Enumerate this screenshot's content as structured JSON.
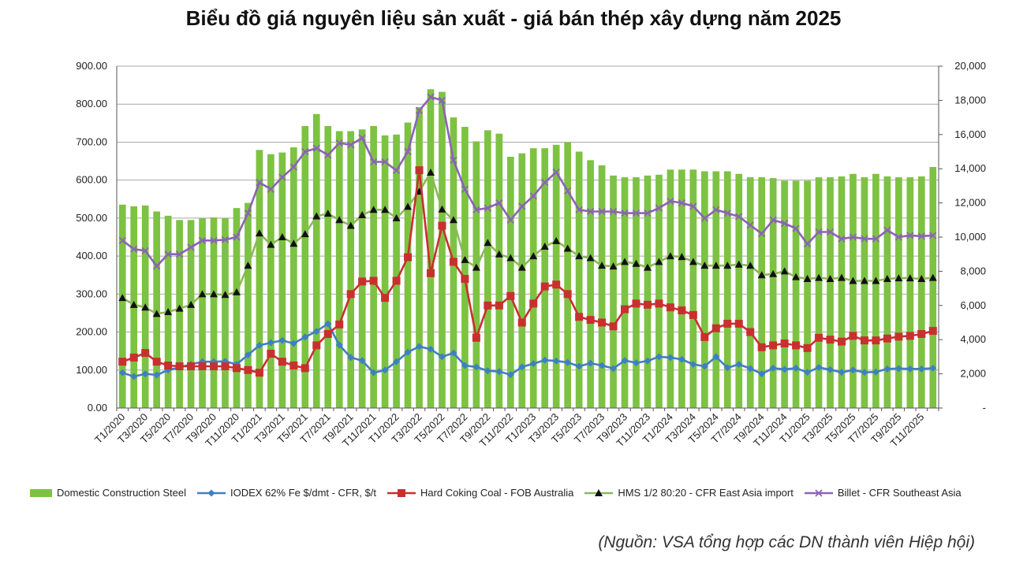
{
  "chart_data": {
    "type": "bar",
    "title": "Biểu đồ giá nguyên liệu sản xuất - giá bán thép xây dựng năm 2025",
    "source": "(Nguồn: VSA tổng hợp các DN thành viên Hiệp hội)",
    "x_tick_labels": [
      "T1/2020",
      "T3/2020",
      "T5/2020",
      "T7/2020",
      "T9/2020",
      "T11/2020",
      "T1/2021",
      "T3/2021",
      "T5/2021",
      "T7/2021",
      "T9/2021",
      "T11/2021",
      "T1/2022",
      "T3/2022",
      "T5/2022",
      "T7/2022",
      "T9/2022",
      "T11/2022",
      "T1/2023",
      "T3/2023",
      "T5/2023",
      "T7/2023",
      "T9/2023",
      "T11/2023",
      "T1/2024",
      "T3/2024",
      "T5/2024",
      "T7/2024",
      "T9/2024",
      "T11/2024",
      "T1/2025",
      "T3/2025",
      "T5/2025",
      "T7/2025",
      "T9/2025",
      "T11/2025"
    ],
    "y_left": {
      "range": [
        0,
        900
      ],
      "ticks": [
        "0.00",
        "100.00",
        "200.00",
        "300.00",
        "400.00",
        "500.00",
        "600.00",
        "700.00",
        "800.00",
        "900.00"
      ]
    },
    "y_right": {
      "range": [
        0,
        20000
      ],
      "ticks": [
        "-",
        "2,000",
        "4,000",
        "6,000",
        "8,000",
        "10,000",
        "12,000",
        "14,000",
        "16,000",
        "18,000",
        "20,000"
      ]
    },
    "grid": true,
    "legend_position": "bottom",
    "series": [
      {
        "name": "Domestic Construction Steel",
        "type": "bar",
        "axis": "right",
        "color": "#7dc242",
        "values": [
          11900,
          11800,
          11850,
          11500,
          11250,
          11000,
          11000,
          11100,
          11150,
          11100,
          11700,
          12000,
          15100,
          14850,
          14950,
          15250,
          16500,
          17200,
          16500,
          16200,
          16200,
          16300,
          16500,
          15950,
          16000,
          16700,
          17600,
          18650,
          18500,
          17000,
          16450,
          15600,
          16250,
          16050,
          14700,
          14900,
          15200,
          15200,
          15400,
          15550,
          15000,
          14500,
          14200,
          13600,
          13500,
          13500,
          13600,
          13650,
          13950,
          13950,
          13950,
          13850,
          13850,
          13850,
          13700,
          13500,
          13500,
          13450,
          13300,
          13300,
          13300,
          13500,
          13500,
          13550,
          13700,
          13500,
          13700,
          13550,
          13500,
          13500,
          13550,
          14100
        ]
      },
      {
        "name": "IODEX 62% Fe $/dmt - CFR, $/t",
        "type": "line",
        "axis": "left",
        "color": "#3f7fc3",
        "marker": "diamond",
        "values": [
          93,
          83,
          90,
          87,
          100,
          107,
          115,
          122,
          122,
          123,
          115,
          140,
          165,
          172,
          178,
          170,
          187,
          202,
          222,
          166,
          133,
          125,
          93,
          100,
          122,
          147,
          162,
          155,
          135,
          145,
          112,
          108,
          98,
          96,
          88,
          108,
          117,
          126,
          124,
          120,
          110,
          118,
          112,
          104,
          125,
          119,
          124,
          135,
          133,
          128,
          115,
          110,
          135,
          106,
          115,
          104,
          90,
          105,
          102,
          105,
          94,
          107,
          101,
          94,
          100,
          94,
          95,
          103,
          104,
          103,
          103,
          105
        ]
      },
      {
        "name": "Hard Coking Coal - FOB Australia",
        "type": "line",
        "axis": "left",
        "color": "#c8302e",
        "marker": "square",
        "values": [
          122,
          133,
          145,
          122,
          112,
          110,
          110,
          110,
          110,
          110,
          105,
          100,
          93,
          143,
          122,
          112,
          105,
          165,
          195,
          220,
          300,
          333,
          335,
          290,
          335,
          397,
          626,
          355,
          480,
          385,
          340,
          185,
          270,
          270,
          295,
          225,
          275,
          320,
          325,
          300,
          240,
          232,
          225,
          215,
          260,
          275,
          272,
          275,
          265,
          257,
          245,
          187,
          210,
          222,
          222,
          200,
          160,
          165,
          170,
          165,
          158,
          185,
          180,
          175,
          190,
          178,
          178,
          183,
          188,
          190,
          195,
          203
        ]
      },
      {
        "name": "HMS 1/2 80:20 - CFR East Asia import",
        "type": "line",
        "axis": "left",
        "color": "#8db85a",
        "marker": "triangle",
        "values": [
          290,
          272,
          265,
          248,
          253,
          262,
          272,
          300,
          300,
          298,
          305,
          375,
          460,
          430,
          450,
          433,
          458,
          505,
          512,
          495,
          480,
          508,
          522,
          522,
          500,
          530,
          570,
          620,
          523,
          495,
          390,
          370,
          435,
          405,
          395,
          370,
          400,
          425,
          440,
          420,
          400,
          395,
          375,
          373,
          385,
          380,
          370,
          385,
          400,
          398,
          385,
          375,
          375,
          375,
          378,
          375,
          350,
          353,
          360,
          345,
          340,
          343,
          340,
          343,
          335,
          335,
          335,
          340,
          342,
          342,
          340,
          343
        ]
      },
      {
        "name": "Billet - CFR Southeast Asia",
        "type": "line",
        "axis": "left",
        "color": "#8c63b4",
        "marker": "x",
        "values": [
          9800,
          9300,
          9200,
          8300,
          9000,
          9000,
          9400,
          9800,
          9800,
          9850,
          10000,
          11400,
          13200,
          12800,
          13500,
          14100,
          15000,
          15200,
          14800,
          15500,
          15400,
          15800,
          14400,
          14400,
          13900,
          15000,
          17400,
          18200,
          18000,
          14500,
          12800,
          11600,
          11700,
          12000,
          11000,
          11800,
          12400,
          13200,
          13800,
          12700,
          11600,
          11500,
          11500,
          11500,
          11400,
          11400,
          11400,
          11700,
          12100,
          12000,
          11800,
          11100,
          11600,
          11400,
          11200,
          10700,
          10200,
          11000,
          10800,
          10500,
          9600,
          10300,
          10300,
          9900,
          10000,
          9900,
          9900,
          10400,
          10000,
          10100,
          10050,
          10100
        ]
      }
    ]
  }
}
